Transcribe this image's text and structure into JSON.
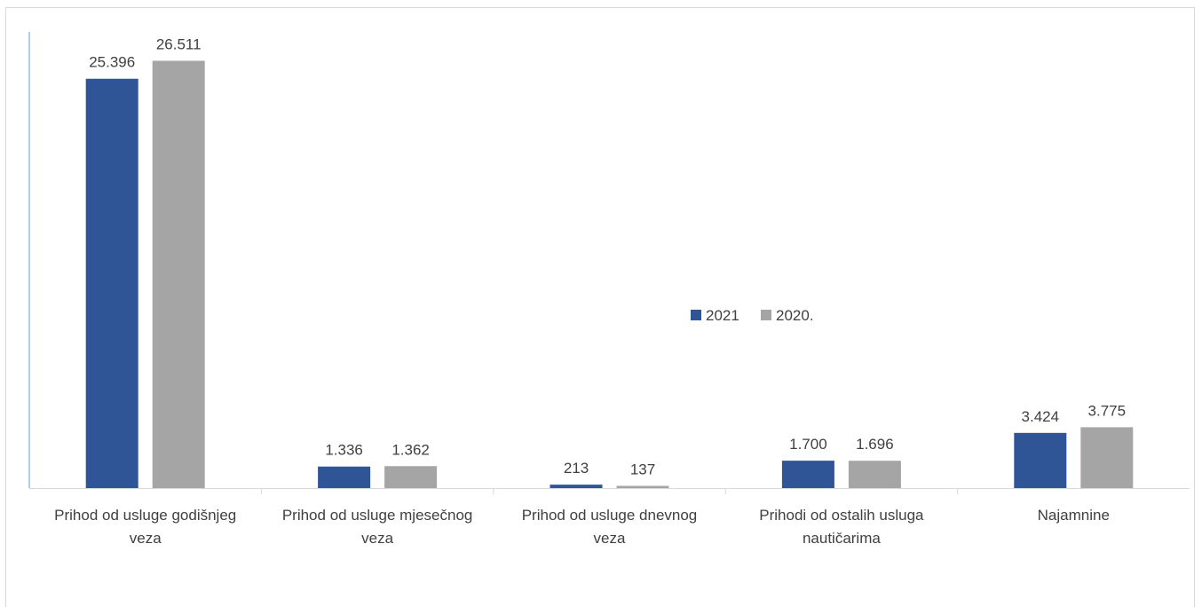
{
  "chart_data": {
    "type": "bar",
    "categories": [
      [
        "Prihod od usluge godišnjeg",
        "veza"
      ],
      [
        "Prihod od usluge mjesečnog",
        "veza"
      ],
      [
        "Prihod od usluge dnevnog",
        "veza"
      ],
      [
        "Prihodi od ostalih usluga",
        "nautičarima"
      ],
      [
        "Najamnine"
      ]
    ],
    "series": [
      {
        "name": "2021",
        "color": "#2f5597",
        "values": [
          25396,
          1336,
          213,
          1700,
          3424
        ],
        "labels": [
          "25.396",
          "1.336",
          "213",
          "1.700",
          "3.424"
        ]
      },
      {
        "name": "2020.",
        "color": "#a5a5a5",
        "values": [
          26511,
          1362,
          137,
          1696,
          3775
        ],
        "labels": [
          "26.511",
          "1.362",
          "137",
          "1.696",
          "3.775"
        ]
      }
    ],
    "ylim": [
      0,
      28300
    ],
    "legend": "center-right",
    "grid": false,
    "axis_color": "#5b9bd5",
    "baseline_color": "#d9d9d9"
  }
}
